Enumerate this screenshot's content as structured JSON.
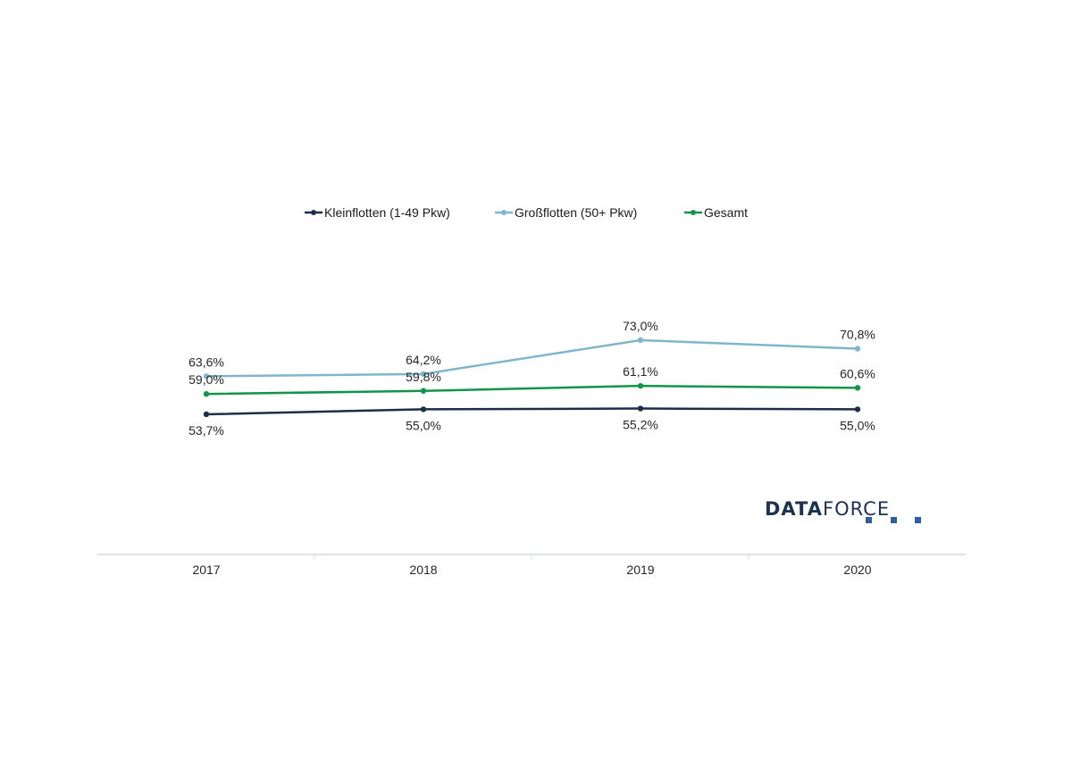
{
  "chart_data": {
    "type": "line",
    "categories": [
      "2017",
      "2018",
      "2019",
      "2020"
    ],
    "series": [
      {
        "name": "Kleinflotten (1-49 Pkw)",
        "color": "#1c2e4a",
        "values": [
          53.7,
          55.0,
          55.2,
          55.0
        ],
        "labels": [
          "53,7%",
          "55,0%",
          "55,2%",
          "55,0%"
        ],
        "label_position": "below"
      },
      {
        "name": "Großflotten (50+ Pkw)",
        "color": "#7fb6cc",
        "values": [
          63.6,
          64.2,
          73.0,
          70.8
        ],
        "labels": [
          "63,6%",
          "64,2%",
          "73,0%",
          "70,8%"
        ],
        "label_position": "above"
      },
      {
        "name": "Gesamt",
        "color": "#12944a",
        "values": [
          59.0,
          59.8,
          61.1,
          60.6
        ],
        "labels": [
          "59,0%",
          "59,8%",
          "61,1%",
          "60,6%"
        ],
        "label_position": "above"
      }
    ],
    "legend_position": "top",
    "grid": false
  },
  "logo": {
    "text_bold": "DATA",
    "text_regular": "FORCE"
  }
}
